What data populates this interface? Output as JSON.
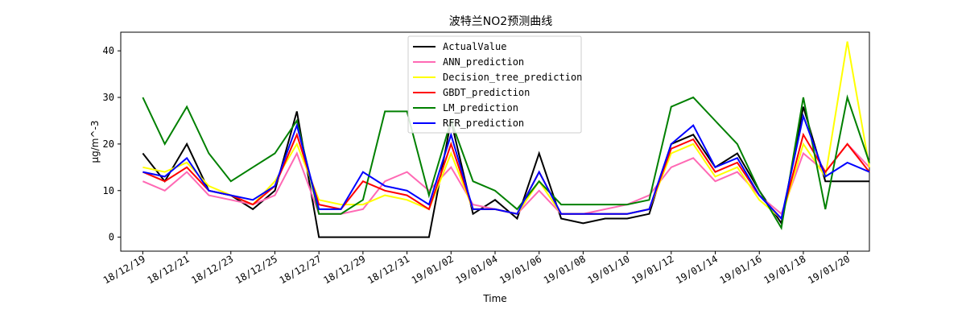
{
  "chart_data": {
    "type": "line",
    "title": "波特兰NO2预测曲线",
    "xlabel": "Time",
    "ylabel": "μg/m^-3",
    "xlim": [
      "2018-12-18",
      "2019-01-21"
    ],
    "ylim": [
      -3,
      44
    ],
    "grid": false,
    "legend_position": "top-center",
    "x_ticks": [
      "18/12/19",
      "18/12/21",
      "18/12/23",
      "18/12/25",
      "18/12/27",
      "18/12/29",
      "18/12/31",
      "19/01/02",
      "19/01/04",
      "19/01/06",
      "19/01/08",
      "19/01/10",
      "19/01/12",
      "19/01/14",
      "19/01/16",
      "19/01/18",
      "19/01/20"
    ],
    "y_ticks": [
      "0",
      "10",
      "20",
      "30",
      "40"
    ],
    "x": [
      "2018-12-19",
      "2018-12-20",
      "2018-12-21",
      "2018-12-22",
      "2018-12-23",
      "2018-12-24",
      "2018-12-25",
      "2018-12-26",
      "2018-12-27",
      "2018-12-28",
      "2018-12-29",
      "2018-12-30",
      "2018-12-31",
      "2019-01-01",
      "2019-01-02",
      "2019-01-03",
      "2019-01-04",
      "2019-01-05",
      "2019-01-06",
      "2019-01-07",
      "2019-01-08",
      "2019-01-09",
      "2019-01-10",
      "2019-01-11",
      "2019-01-12",
      "2019-01-13",
      "2019-01-14",
      "2019-01-15",
      "2019-01-16",
      "2019-01-17",
      "2019-01-18",
      "2019-01-19",
      "2019-01-20",
      "2019-01-21"
    ],
    "series": [
      {
        "name": "ActualValue",
        "color": "#000000",
        "values": [
          18,
          12,
          20,
          10,
          9,
          6,
          10,
          27,
          0,
          0,
          0,
          0,
          0,
          0,
          25,
          5,
          8,
          4,
          18,
          4,
          3,
          4,
          4,
          5,
          20,
          22,
          15,
          18,
          10,
          3,
          28,
          12,
          12,
          12
        ]
      },
      {
        "name": "ANN_prediction",
        "color": "#ff69b4",
        "values": [
          12,
          10,
          14,
          9,
          8,
          7,
          9,
          18,
          5,
          5,
          6,
          12,
          14,
          10,
          15,
          7,
          6,
          5,
          10,
          5,
          5,
          6,
          7,
          9,
          15,
          17,
          12,
          14,
          9,
          5,
          18,
          14,
          20,
          15
        ]
      },
      {
        "name": "Decision_tree_prediction",
        "color": "#ffff00",
        "values": [
          15,
          14,
          16,
          11,
          9,
          7,
          12,
          20,
          8,
          7,
          7,
          9,
          8,
          6,
          18,
          6,
          6,
          5,
          12,
          5,
          5,
          5,
          5,
          6,
          18,
          20,
          13,
          15,
          8,
          4,
          20,
          13,
          42,
          15
        ]
      },
      {
        "name": "GBDT_prediction",
        "color": "#ff0000",
        "values": [
          14,
          12,
          15,
          10,
          9,
          7,
          11,
          22,
          7,
          6,
          12,
          10,
          9,
          6,
          20,
          6,
          6,
          5,
          14,
          5,
          5,
          5,
          5,
          6,
          19,
          21,
          14,
          16,
          9,
          4,
          22,
          14,
          20,
          14
        ]
      },
      {
        "name": "LM_prediction",
        "color": "#008000",
        "values": [
          30,
          20,
          28,
          18,
          12,
          15,
          18,
          25,
          5,
          5,
          8,
          27,
          27,
          9,
          25,
          12,
          10,
          6,
          12,
          7,
          7,
          7,
          7,
          8,
          28,
          30,
          25,
          20,
          10,
          2,
          30,
          6,
          30,
          16
        ]
      },
      {
        "name": "RFR_prediction",
        "color": "#0000ff",
        "values": [
          14,
          13,
          17,
          10,
          9,
          8,
          11,
          24,
          6,
          6,
          14,
          11,
          10,
          7,
          22,
          6,
          6,
          5,
          14,
          5,
          5,
          5,
          5,
          6,
          20,
          24,
          15,
          17,
          9,
          4,
          26,
          13,
          16,
          14
        ]
      }
    ]
  }
}
